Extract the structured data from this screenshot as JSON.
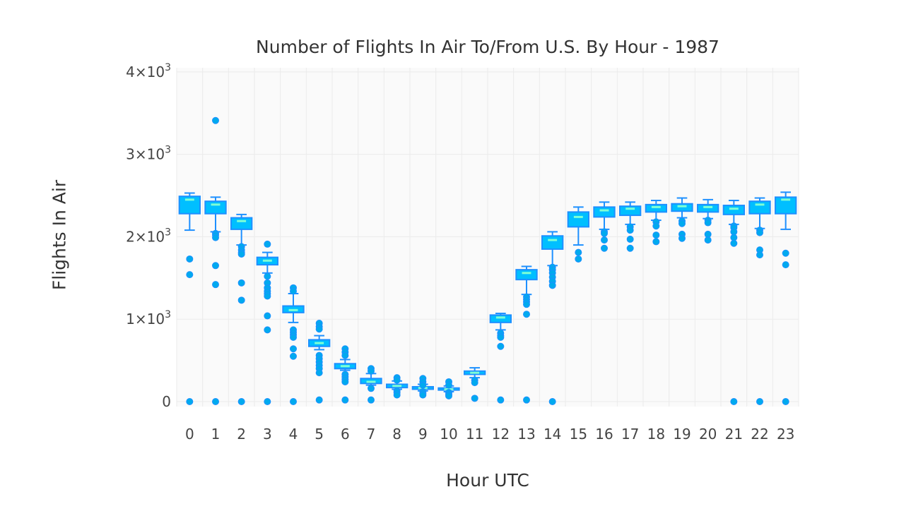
{
  "chart_data": {
    "type": "box",
    "title": "Number of Flights In Air To/From U.S. By Hour - 1987",
    "xlabel": "Hour UTC",
    "ylabel": "Flights In Air",
    "categories": [
      "0",
      "1",
      "2",
      "3",
      "4",
      "5",
      "6",
      "7",
      "8",
      "9",
      "10",
      "11",
      "12",
      "13",
      "14",
      "15",
      "16",
      "17",
      "18",
      "19",
      "20",
      "21",
      "22",
      "23"
    ],
    "ylim": [
      -60,
      4050
    ],
    "yticks": [
      {
        "value": 0,
        "base": "0",
        "exp": ""
      },
      {
        "value": 1000,
        "base": "1×10",
        "exp": "3"
      },
      {
        "value": 2000,
        "base": "2×10",
        "exp": "3"
      },
      {
        "value": 3000,
        "base": "3×10",
        "exp": "3"
      },
      {
        "value": 4000,
        "base": "4×10",
        "exp": "3"
      }
    ],
    "grid": true,
    "colors": {
      "box_fill": "#00bfff",
      "box_line": "#1e90ff",
      "median": "#7fffd4",
      "outlier": "#00aaee",
      "plot_bg": "#fafafa",
      "grid": "#ebebeb"
    },
    "boxes": [
      {
        "hour": 0,
        "q1": 2280,
        "median": 2450,
        "q3": 2490,
        "whisker_low": 2080,
        "whisker_high": 2530,
        "outliers": [
          1730,
          1540,
          0
        ]
      },
      {
        "hour": 1,
        "q1": 2280,
        "median": 2390,
        "q3": 2430,
        "whisker_low": 2060,
        "whisker_high": 2480,
        "outliers": [
          3410,
          2040,
          2020,
          1990,
          1650,
          1420,
          0
        ]
      },
      {
        "hour": 2,
        "q1": 2090,
        "median": 2190,
        "q3": 2230,
        "whisker_low": 1900,
        "whisker_high": 2270,
        "outliers": [
          1880,
          1840,
          1810,
          1790,
          1440,
          1230,
          0
        ]
      },
      {
        "hour": 3,
        "q1": 1660,
        "median": 1710,
        "q3": 1750,
        "whisker_low": 1560,
        "whisker_high": 1810,
        "outliers": [
          1910,
          1520,
          1440,
          1380,
          1340,
          1310,
          1280,
          1040,
          870,
          0
        ]
      },
      {
        "hour": 4,
        "q1": 1080,
        "median": 1110,
        "q3": 1160,
        "whisker_low": 960,
        "whisker_high": 1310,
        "outliers": [
          1380,
          1340,
          870,
          840,
          810,
          780,
          640,
          550,
          0
        ]
      },
      {
        "hour": 5,
        "q1": 670,
        "median": 710,
        "q3": 750,
        "whisker_low": 630,
        "whisker_high": 800,
        "outliers": [
          950,
          910,
          880,
          560,
          520,
          480,
          440,
          400,
          350,
          20
        ]
      },
      {
        "hour": 6,
        "q1": 400,
        "median": 430,
        "q3": 460,
        "whisker_low": 380,
        "whisker_high": 510,
        "outliers": [
          640,
          600,
          560,
          330,
          300,
          270,
          240,
          20
        ]
      },
      {
        "hour": 7,
        "q1": 220,
        "median": 240,
        "q3": 280,
        "whisker_low": 200,
        "whisker_high": 340,
        "outliers": [
          400,
          370,
          160,
          20
        ]
      },
      {
        "hour": 8,
        "q1": 170,
        "median": 190,
        "q3": 210,
        "whisker_low": 150,
        "whisker_high": 250,
        "outliers": [
          290,
          260,
          130,
          110,
          80
        ]
      },
      {
        "hour": 9,
        "q1": 150,
        "median": 165,
        "q3": 180,
        "whisker_low": 130,
        "whisker_high": 210,
        "outliers": [
          280,
          240,
          200,
          120,
          100,
          80
        ]
      },
      {
        "hour": 10,
        "q1": 140,
        "median": 150,
        "q3": 165,
        "whisker_low": 120,
        "whisker_high": 190,
        "outliers": [
          240,
          200,
          110,
          90,
          70
        ]
      },
      {
        "hour": 11,
        "q1": 330,
        "median": 350,
        "q3": 370,
        "whisker_low": 290,
        "whisker_high": 410,
        "outliers": [
          260,
          230,
          40
        ]
      },
      {
        "hour": 12,
        "q1": 960,
        "median": 1020,
        "q3": 1050,
        "whisker_low": 870,
        "whisker_high": 1070,
        "outliers": [
          830,
          800,
          780,
          670,
          20
        ]
      },
      {
        "hour": 13,
        "q1": 1480,
        "median": 1560,
        "q3": 1600,
        "whisker_low": 1300,
        "whisker_high": 1640,
        "outliers": [
          1270,
          1240,
          1210,
          1180,
          1060,
          20
        ]
      },
      {
        "hour": 14,
        "q1": 1850,
        "median": 1960,
        "q3": 2010,
        "whisker_low": 1650,
        "whisker_high": 2060,
        "outliers": [
          1630,
          1600,
          1560,
          1510,
          1460,
          1410,
          0
        ]
      },
      {
        "hour": 15,
        "q1": 2120,
        "median": 2240,
        "q3": 2300,
        "whisker_low": 1900,
        "whisker_high": 2360,
        "outliers": [
          1810,
          1730
        ]
      },
      {
        "hour": 16,
        "q1": 2240,
        "median": 2320,
        "q3": 2360,
        "whisker_low": 2090,
        "whisker_high": 2420,
        "outliers": [
          2060,
          2040,
          1960,
          1860
        ]
      },
      {
        "hour": 17,
        "q1": 2260,
        "median": 2340,
        "q3": 2370,
        "whisker_low": 2150,
        "whisker_high": 2420,
        "outliers": [
          2120,
          2080,
          1970,
          1860
        ]
      },
      {
        "hour": 18,
        "q1": 2300,
        "median": 2360,
        "q3": 2390,
        "whisker_low": 2200,
        "whisker_high": 2440,
        "outliers": [
          2180,
          2130,
          2020,
          1940
        ]
      },
      {
        "hour": 19,
        "q1": 2310,
        "median": 2370,
        "q3": 2400,
        "whisker_low": 2230,
        "whisker_high": 2470,
        "outliers": [
          2190,
          2160,
          2030,
          1980
        ]
      },
      {
        "hour": 20,
        "q1": 2300,
        "median": 2360,
        "q3": 2390,
        "whisker_low": 2220,
        "whisker_high": 2450,
        "outliers": [
          2200,
          2170,
          2030,
          1960
        ]
      },
      {
        "hour": 21,
        "q1": 2270,
        "median": 2340,
        "q3": 2380,
        "whisker_low": 2150,
        "whisker_high": 2440,
        "outliers": [
          2130,
          2110,
          2060,
          1990,
          1920,
          0
        ]
      },
      {
        "hour": 22,
        "q1": 2280,
        "median": 2390,
        "q3": 2430,
        "whisker_low": 2100,
        "whisker_high": 2470,
        "outliers": [
          2080,
          2050,
          1840,
          1780,
          0
        ]
      },
      {
        "hour": 23,
        "q1": 2280,
        "median": 2450,
        "q3": 2480,
        "whisker_low": 2090,
        "whisker_high": 2540,
        "outliers": [
          1800,
          1660,
          0
        ]
      }
    ]
  }
}
